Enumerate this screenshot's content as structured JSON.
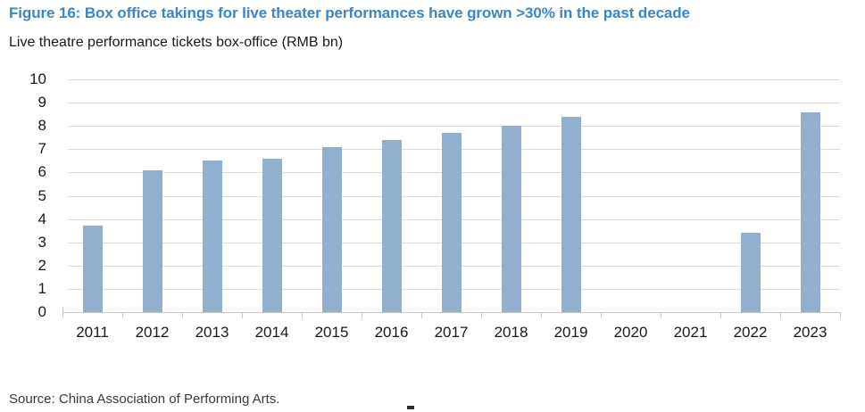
{
  "figure": {
    "title": "Figure 16: Box office takings for live theater performances have grown >30% in the past decade",
    "subtitle": "Live theatre performance tickets box-office (RMB bn)",
    "source": "Source: China Association of Performing Arts."
  },
  "colors": {
    "title_text": "#3a86c8",
    "body_text": "#1a1a1a",
    "source_text": "#3a3a3a",
    "bar": "#93afd0",
    "gridline": "#dcdcdc",
    "axis": "#c6c6c6"
  },
  "chart_data": {
    "type": "bar",
    "title": "Live theatre performance tickets box-office (RMB bn)",
    "categories": [
      "2011",
      "2012",
      "2013",
      "2014",
      "2015",
      "2016",
      "2017",
      "2018",
      "2019",
      "2020",
      "2021",
      "2022",
      "2023"
    ],
    "values": [
      3.7,
      6.1,
      6.5,
      6.6,
      7.1,
      7.4,
      7.7,
      8.0,
      8.4,
      0,
      0,
      3.4,
      8.6
    ],
    "xlabel": "",
    "ylabel": "",
    "ylim": [
      0,
      10
    ],
    "yticks": [
      0,
      1,
      2,
      3,
      4,
      5,
      6,
      7,
      8,
      9,
      10
    ],
    "grid": true,
    "legend": false
  }
}
